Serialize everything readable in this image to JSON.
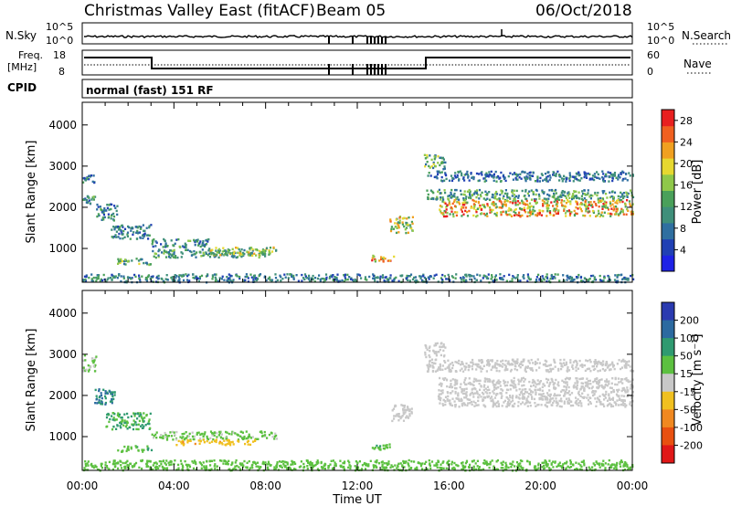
{
  "header": {
    "station": "Christmas Valley East (fitACF)",
    "beam": "Beam 05",
    "date": "06/Oct/2018"
  },
  "nsky": {
    "label": "N.Sky",
    "tick_hi": "10^5",
    "tick_lo": "10^0",
    "right_label": "N.Search",
    "right_tick_hi": "10^5",
    "right_tick_lo": "10^0"
  },
  "freq": {
    "label_line1": "Freq.",
    "label_line2": "[MHz]",
    "tick_hi": "18",
    "tick_lo": "8",
    "right_label": "Nave",
    "right_tick_hi": "60",
    "right_tick_lo": "0"
  },
  "cpid": {
    "label": "CPID",
    "mode": "normal (fast) 151 RF"
  },
  "chart_data": [
    {
      "type": "heatmap",
      "name": "power",
      "ylabel": "Slant Range [km]",
      "xlabel": "Time UT",
      "x_ticks": [
        "00:00",
        "04:00",
        "08:00",
        "12:00",
        "16:00",
        "20:00",
        "00:00"
      ],
      "y_ticks": [
        1000,
        2000,
        3000,
        4000
      ],
      "ylim": [
        180,
        4550
      ],
      "xlim_hours": [
        0,
        24
      ],
      "colorbar": {
        "label": "Power [dB]",
        "ticks": [
          4,
          8,
          12,
          16,
          20,
          24,
          28
        ],
        "range": [
          0,
          30
        ],
        "colors": [
          "#1e22e6",
          "#2040b4",
          "#2f6fa0",
          "#3f8f7a",
          "#4aa05a",
          "#8fc84a",
          "#e6d830",
          "#f0a020",
          "#f06020",
          "#e82020"
        ]
      },
      "regions": [
        {
          "t0": 0.0,
          "t1": 0.5,
          "r0": 2600,
          "r1": 2800,
          "level": 8
        },
        {
          "t0": 0.0,
          "t1": 0.6,
          "r0": 2100,
          "r1": 2300,
          "level": 10
        },
        {
          "t0": 0.6,
          "t1": 1.5,
          "r0": 1700,
          "r1": 2100,
          "level": 10
        },
        {
          "t0": 1.2,
          "t1": 3.0,
          "r0": 1250,
          "r1": 1600,
          "level": 9
        },
        {
          "t0": 3.0,
          "t1": 5.5,
          "r0": 1050,
          "r1": 1250,
          "level": 10
        },
        {
          "t0": 3.0,
          "t1": 8.0,
          "r0": 800,
          "r1": 1000,
          "level": 12
        },
        {
          "t0": 5.5,
          "t1": 8.5,
          "r0": 850,
          "r1": 1050,
          "level": 16
        },
        {
          "t0": 1.5,
          "t1": 3.0,
          "r0": 620,
          "r1": 800,
          "level": 13
        },
        {
          "t0": 12.6,
          "t1": 13.6,
          "r0": 700,
          "r1": 850,
          "level": 22
        },
        {
          "t0": 13.4,
          "t1": 14.4,
          "r0": 1400,
          "r1": 1800,
          "level": 17
        },
        {
          "t0": 14.9,
          "t1": 15.8,
          "r0": 2950,
          "r1": 3300,
          "level": 13
        },
        {
          "t0": 15.0,
          "t1": 24.0,
          "r0": 2650,
          "r1": 2900,
          "level": 8
        },
        {
          "t0": 15.0,
          "t1": 24.0,
          "r0": 2200,
          "r1": 2450,
          "level": 12
        },
        {
          "t0": 15.5,
          "t1": 24.0,
          "r0": 1800,
          "r1": 2200,
          "level": 21
        },
        {
          "t0": 0.0,
          "t1": 24.0,
          "r0": 200,
          "r1": 400,
          "level": 9
        }
      ]
    },
    {
      "type": "heatmap",
      "name": "velocity",
      "ylabel": "Slant Range [km]",
      "xlabel": "Time UT",
      "x_ticks": [
        "00:00",
        "04:00",
        "08:00",
        "12:00",
        "16:00",
        "20:00",
        "00:00"
      ],
      "y_ticks": [
        1000,
        2000,
        3000,
        4000
      ],
      "ylim": [
        180,
        4550
      ],
      "xlim_hours": [
        0,
        24
      ],
      "colorbar": {
        "label": "Velocity [m s⁻¹]",
        "ticks": [
          200,
          100,
          50,
          15,
          -15,
          -50,
          -100,
          -200
        ],
        "colors": [
          "#2a3ab0",
          "#2c6aa0",
          "#2f9a70",
          "#5cc040",
          "#c8c8c8",
          "#f0c020",
          "#f08820",
          "#e85010",
          "#e01818"
        ]
      },
      "regions": [
        {
          "t0": 0.0,
          "t1": 0.6,
          "r0": 2600,
          "r1": 3000,
          "level": 15
        },
        {
          "t0": 0.5,
          "t1": 1.4,
          "r0": 1800,
          "r1": 2200,
          "level": 100
        },
        {
          "t0": 1.0,
          "t1": 3.0,
          "r0": 1200,
          "r1": 1600,
          "level": 50
        },
        {
          "t0": 3.0,
          "t1": 8.5,
          "r0": 950,
          "r1": 1150,
          "level": 20
        },
        {
          "t0": 4.0,
          "t1": 7.5,
          "r0": 820,
          "r1": 950,
          "level": -40
        },
        {
          "t0": 1.5,
          "t1": 3.0,
          "r0": 650,
          "r1": 800,
          "level": 40
        },
        {
          "t0": 12.6,
          "t1": 13.4,
          "r0": 700,
          "r1": 850,
          "level": 40
        },
        {
          "t0": 13.4,
          "t1": 14.4,
          "r0": 1400,
          "r1": 1800,
          "level": 0
        },
        {
          "t0": 14.9,
          "t1": 15.8,
          "r0": 2950,
          "r1": 3300,
          "level": 0
        },
        {
          "t0": 15.0,
          "t1": 24.0,
          "r0": 2600,
          "r1": 2900,
          "level": 0
        },
        {
          "t0": 15.5,
          "t1": 24.0,
          "r0": 1750,
          "r1": 2450,
          "level": 0
        },
        {
          "t0": 0.0,
          "t1": 24.0,
          "r0": 200,
          "r1": 450,
          "level": 30
        }
      ]
    }
  ]
}
